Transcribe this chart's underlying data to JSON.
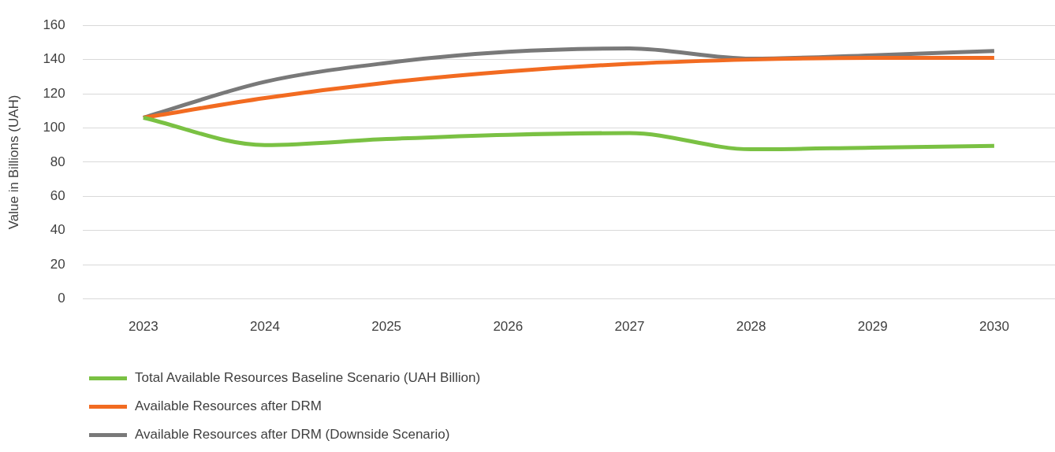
{
  "chart_data": {
    "type": "line",
    "ylabel": "Value in Billions (UAH)",
    "categories": [
      "2023",
      "2024",
      "2025",
      "2026",
      "2027",
      "2028",
      "2029",
      "2030"
    ],
    "series": [
      {
        "name": "Total Available Resources Baseline Scenario (UAH Billion)",
        "color": "#7ac143",
        "values": [
          106,
          90,
          93.5,
          96,
          97,
          87.5,
          88.5,
          89.5
        ]
      },
      {
        "name": "Available Resources after DRM",
        "color": "#f26b21",
        "values": [
          106,
          117.5,
          126.5,
          133,
          137.5,
          140,
          141,
          141
        ]
      },
      {
        "name": "Available Resources after DRM (Downside Scenario)",
        "color": "#797979",
        "values": [
          106,
          127,
          138,
          144.5,
          146.5,
          140.5,
          142.5,
          145
        ]
      }
    ],
    "ylim": [
      0,
      160
    ],
    "yticks": [
      0,
      20,
      40,
      60,
      80,
      100,
      120,
      140,
      160
    ],
    "grid": "y",
    "legend": "bottom",
    "marker": "none",
    "line_style": "solid"
  }
}
